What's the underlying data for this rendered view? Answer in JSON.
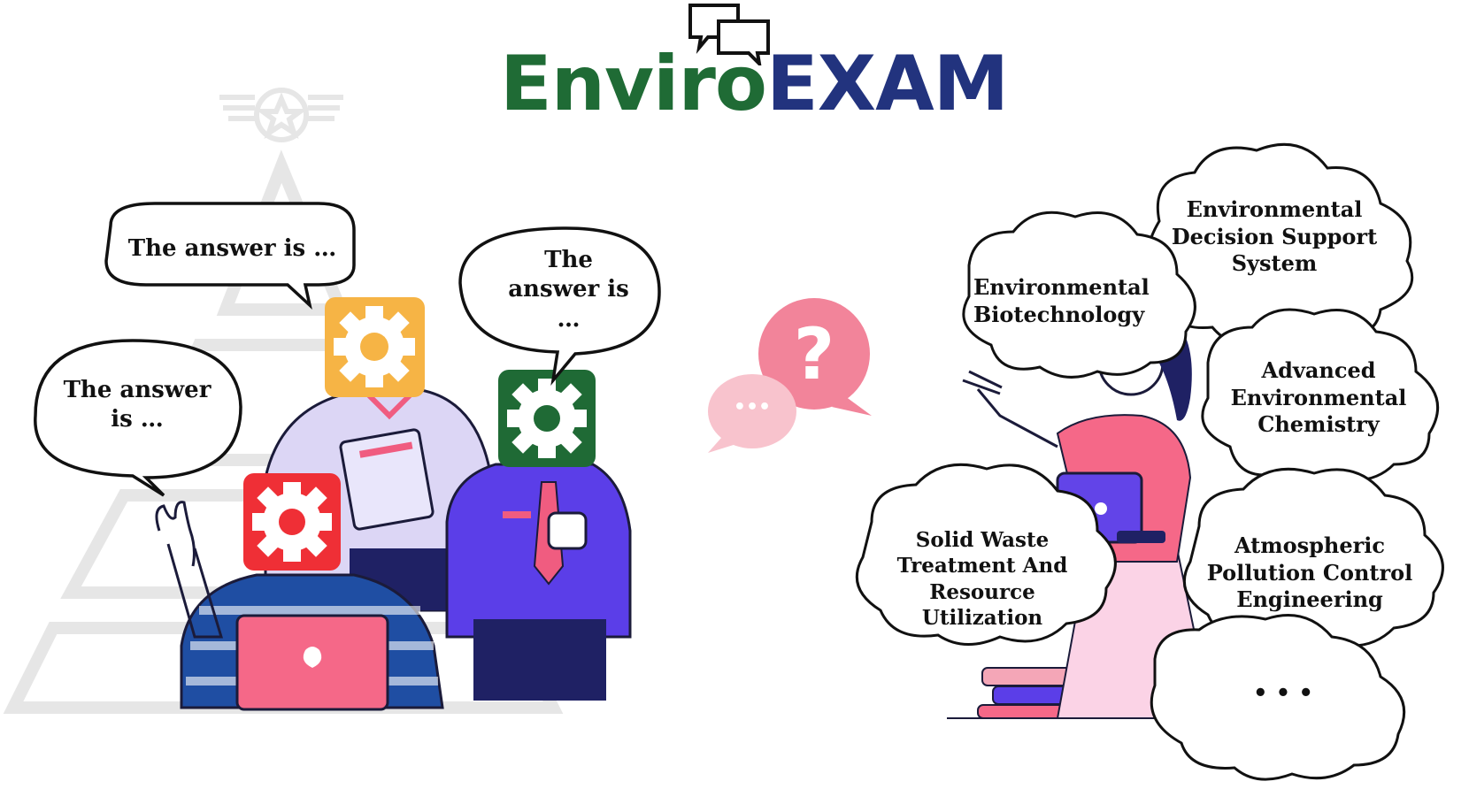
{
  "logo": {
    "part1": "Enviro",
    "part2": "EXAM",
    "part1_color": "#1f6b35",
    "part2_color": "#22337e"
  },
  "students": {
    "bubbles": [
      {
        "line1": "The answer is …",
        "line2": ""
      },
      {
        "line1": "The answer",
        "line2": "is …"
      },
      {
        "line1": "The",
        "line2": "answer is",
        "line3": "…"
      }
    ],
    "avatar_colors": {
      "yellow": "#f6b445",
      "green": "#1f6a35",
      "red": "#ef2f36"
    }
  },
  "center": {
    "question_symbol": "?",
    "ellipsis": "•••"
  },
  "topics": [
    {
      "lines": [
        "Environmental",
        "Decision Support",
        "System"
      ]
    },
    {
      "lines": [
        "Environmental",
        "Biotechnology"
      ]
    },
    {
      "lines": [
        "Advanced",
        "Environmental",
        "Chemistry"
      ]
    },
    {
      "lines": [
        "Solid Waste",
        "Treatment And",
        "Resource Utilization"
      ]
    },
    {
      "lines": [
        "Atmospheric",
        "Pollution Control",
        "Engineering"
      ]
    },
    {
      "lines": [
        "• • •"
      ]
    }
  ]
}
